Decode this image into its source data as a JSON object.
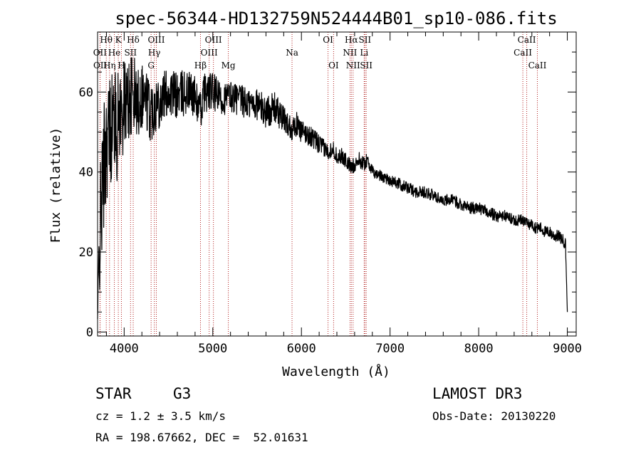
{
  "chart_data": {
    "type": "line",
    "title": "spec-56344-HD132759N524444B01_sp10-086.fits",
    "xlabel": "Wavelength (Å)",
    "ylabel": "Flux (relative)",
    "xlim": [
      3700,
      9100
    ],
    "ylim": [
      -1,
      75
    ],
    "xticks": [
      4000,
      5000,
      6000,
      7000,
      8000,
      9000
    ],
    "yticks": [
      0,
      20,
      40,
      60
    ],
    "grid": false,
    "series": [
      {
        "name": "flux",
        "x": [
          3700,
          3720,
          3740,
          3760,
          3780,
          3800,
          3830,
          3860,
          3890,
          3920,
          3950,
          3970,
          4000,
          4050,
          4100,
          4150,
          4200,
          4250,
          4300,
          4350,
          4400,
          4500,
          4600,
          4700,
          4800,
          4860,
          4900,
          5000,
          5100,
          5200,
          5300,
          5400,
          5500,
          5600,
          5700,
          5800,
          5890,
          5950,
          6000,
          6100,
          6200,
          6300,
          6350,
          6400,
          6450,
          6500,
          6560,
          6600,
          6650,
          6700,
          6750,
          6800,
          6900,
          7000,
          7100,
          7200,
          7300,
          7400,
          7500,
          7600,
          7700,
          7800,
          7900,
          8000,
          8100,
          8200,
          8300,
          8400,
          8500,
          8550,
          8600,
          8650,
          8700,
          8750,
          8800,
          8850,
          8900,
          8950,
          8980,
          9000
        ],
        "y": [
          3,
          22,
          30,
          38,
          44,
          48,
          50,
          52,
          54,
          50,
          56,
          54,
          57,
          58,
          60,
          57,
          60,
          58,
          55,
          57,
          58,
          60,
          59,
          60,
          59,
          55,
          60,
          60,
          58,
          59,
          58,
          57,
          57,
          55,
          56,
          53,
          51,
          52,
          50,
          49,
          47,
          45,
          46,
          44,
          44,
          43,
          41,
          42,
          43,
          42,
          43,
          40,
          39,
          38,
          37,
          36,
          35,
          35,
          34,
          33,
          33,
          32,
          31,
          31,
          30,
          29,
          29,
          28,
          28,
          27,
          27,
          26,
          26,
          25,
          25,
          24,
          24,
          23,
          22,
          5
        ],
        "noise_amplitude": [
          1.5,
          14,
          16,
          16,
          16,
          15,
          15,
          14,
          13,
          13,
          12,
          12,
          11,
          11,
          10,
          9,
          9,
          8,
          8,
          7,
          7,
          6,
          6,
          6,
          5,
          5,
          5,
          5,
          4,
          4,
          4,
          4,
          4,
          4,
          4,
          3.5,
          3,
          3,
          3,
          2.5,
          2.5,
          2,
          2,
          2,
          2,
          2,
          2,
          2,
          2,
          1.8,
          1.8,
          1.5,
          1.5,
          1.5,
          1.5,
          1.5,
          1.5,
          1.5,
          1.5,
          1.5,
          1.5,
          1.5,
          1.5,
          1.5,
          1.5,
          1.5,
          1.5,
          1.5,
          1.5,
          1.5,
          1.5,
          1.5,
          1.5,
          1.5,
          1.5,
          1.5,
          1.5,
          1.5,
          1.5,
          0
        ]
      }
    ],
    "line_color": "#000000",
    "marker_color": "#b22222",
    "spectral_lines": [
      {
        "label": "Hθ",
        "wave": 3798,
        "row": 0
      },
      {
        "label": "OII",
        "wave": 3727,
        "row": 1
      },
      {
        "label": "OII",
        "wave": 3729,
        "row": 2
      },
      {
        "label": "Hη",
        "wave": 3835,
        "row": 2
      },
      {
        "label": "He",
        "wave": 3889,
        "row": 1
      },
      {
        "label": "K",
        "wave": 3934,
        "row": 0
      },
      {
        "label": "H",
        "wave": 3969,
        "row": 2
      },
      {
        "label": "SII",
        "wave": 4072,
        "row": 1
      },
      {
        "label": "Hδ",
        "wave": 4102,
        "row": 0
      },
      {
        "label": "OIII",
        "wave": 4363,
        "row": 0
      },
      {
        "label": "Hγ",
        "wave": 4340,
        "row": 1
      },
      {
        "label": "G",
        "wave": 4304,
        "row": 2
      },
      {
        "label": "Hβ",
        "wave": 4861,
        "row": 2
      },
      {
        "label": "OIII",
        "wave": 5007,
        "row": 0
      },
      {
        "label": "OIII",
        "wave": 4959,
        "row": 1
      },
      {
        "label": "Mg",
        "wave": 5175,
        "row": 2
      },
      {
        "label": "Na",
        "wave": 5894,
        "row": 1
      },
      {
        "label": "OI",
        "wave": 6300,
        "row": 0
      },
      {
        "label": "OI",
        "wave": 6363,
        "row": 2
      },
      {
        "label": "Hα",
        "wave": 6563,
        "row": 0
      },
      {
        "label": "NII",
        "wave": 6548,
        "row": 1
      },
      {
        "label": "NII",
        "wave": 6583,
        "row": 2
      },
      {
        "label": "SII",
        "wave": 6716,
        "row": 0
      },
      {
        "label": "Li",
        "wave": 6708,
        "row": 1
      },
      {
        "label": "SII",
        "wave": 6731,
        "row": 2
      },
      {
        "label": "CaII",
        "wave": 8542,
        "row": 0
      },
      {
        "label": "CaII",
        "wave": 8498,
        "row": 1
      },
      {
        "label": "CaII",
        "wave": 8662,
        "row": 2
      }
    ]
  },
  "info": {
    "object_class": "STAR",
    "subclass": "G3",
    "redshift": "cz = 1.2 ± 3.5 km/s",
    "coords": "RA = 198.67662, DEC =  52.01631",
    "survey": "LAMOST DR3",
    "obs_date": "Obs-Date: 20130220"
  }
}
